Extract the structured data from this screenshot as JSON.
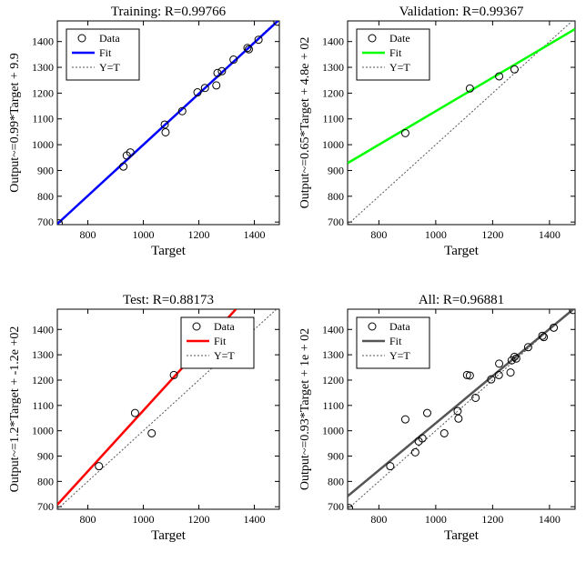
{
  "chart_data": [
    {
      "type": "scatter",
      "title": "Training: R=0.99766",
      "xlabel": "Target",
      "ylabel": "Output~=0.99*Target + 9.9",
      "xlim": [
        690,
        1490
      ],
      "ylim": [
        690,
        1480
      ],
      "xticks": [
        800,
        1000,
        1200,
        1400
      ],
      "yticks": [
        700,
        800,
        900,
        1000,
        1100,
        1200,
        1300,
        1400
      ],
      "fit_color": "#0000ff",
      "fit": {
        "slope": 0.99,
        "intercept": 9.9
      },
      "legend_position": "top-left",
      "legend": [
        "Data",
        "Fit",
        "Y=T"
      ],
      "points": [
        [
          695,
          695
        ],
        [
          928,
          915
        ],
        [
          940,
          958
        ],
        [
          953,
          970
        ],
        [
          1077,
          1078
        ],
        [
          1080,
          1048
        ],
        [
          1140,
          1130
        ],
        [
          1195,
          1203
        ],
        [
          1222,
          1220
        ],
        [
          1263,
          1230
        ],
        [
          1267,
          1278
        ],
        [
          1283,
          1285
        ],
        [
          1325,
          1330
        ],
        [
          1375,
          1375
        ],
        [
          1380,
          1370
        ],
        [
          1415,
          1407
        ],
        [
          1483,
          1477
        ]
      ]
    },
    {
      "type": "scatter",
      "title": "Validation: R=0.99367",
      "xlabel": "Target",
      "ylabel": "Output~=0.65*Target + 4.8e + 02",
      "xlim": [
        690,
        1490
      ],
      "ylim": [
        690,
        1480
      ],
      "xticks": [
        800,
        1000,
        1200,
        1400
      ],
      "yticks": [
        700,
        800,
        900,
        1000,
        1100,
        1200,
        1300,
        1400
      ],
      "fit_color": "#00ff00",
      "fit": {
        "slope": 0.65,
        "intercept": 480
      },
      "legend_position": "top-left",
      "legend": [
        "Date",
        "Fit",
        "Y=T"
      ],
      "points": [
        [
          893,
          1045
        ],
        [
          1120,
          1218
        ],
        [
          1223,
          1265
        ],
        [
          1277,
          1292
        ]
      ]
    },
    {
      "type": "scatter",
      "title": "Test: R=0.88173",
      "xlabel": "Target",
      "ylabel": "Output~=1.2*Target + -1.2e +02",
      "xlim": [
        690,
        1490
      ],
      "ylim": [
        690,
        1480
      ],
      "xticks": [
        800,
        1000,
        1200,
        1400
      ],
      "yticks": [
        700,
        800,
        900,
        1000,
        1100,
        1200,
        1300,
        1400
      ],
      "fit_color": "#ff0000",
      "fit": {
        "slope": 1.2,
        "intercept": -120
      },
      "legend_position": "top-right",
      "legend": [
        "Data",
        "Fit",
        "Y=T"
      ],
      "points": [
        [
          840,
          860
        ],
        [
          970,
          1070
        ],
        [
          1030,
          990
        ],
        [
          1110,
          1220
        ]
      ]
    },
    {
      "type": "scatter",
      "title": "All: R=0.96881",
      "xlabel": "Target",
      "ylabel": "Output~=0.93*Target + 1e + 02",
      "xlim": [
        690,
        1490
      ],
      "ylim": [
        690,
        1480
      ],
      "xticks": [
        800,
        1000,
        1200,
        1400
      ],
      "yticks": [
        700,
        800,
        900,
        1000,
        1100,
        1200,
        1300,
        1400
      ],
      "fit_color": "#555555",
      "fit": {
        "slope": 0.93,
        "intercept": 100
      },
      "legend_position": "top-left",
      "legend": [
        "Data",
        "Fit",
        "Y=T"
      ],
      "points": [
        [
          695,
          695
        ],
        [
          840,
          860
        ],
        [
          893,
          1045
        ],
        [
          928,
          915
        ],
        [
          940,
          958
        ],
        [
          953,
          970
        ],
        [
          970,
          1070
        ],
        [
          1030,
          990
        ],
        [
          1077,
          1078
        ],
        [
          1080,
          1048
        ],
        [
          1110,
          1220
        ],
        [
          1120,
          1218
        ],
        [
          1140,
          1130
        ],
        [
          1195,
          1203
        ],
        [
          1222,
          1220
        ],
        [
          1223,
          1265
        ],
        [
          1263,
          1230
        ],
        [
          1267,
          1278
        ],
        [
          1277,
          1292
        ],
        [
          1283,
          1285
        ],
        [
          1325,
          1330
        ],
        [
          1375,
          1375
        ],
        [
          1380,
          1370
        ],
        [
          1415,
          1407
        ],
        [
          1483,
          1477
        ]
      ]
    }
  ]
}
